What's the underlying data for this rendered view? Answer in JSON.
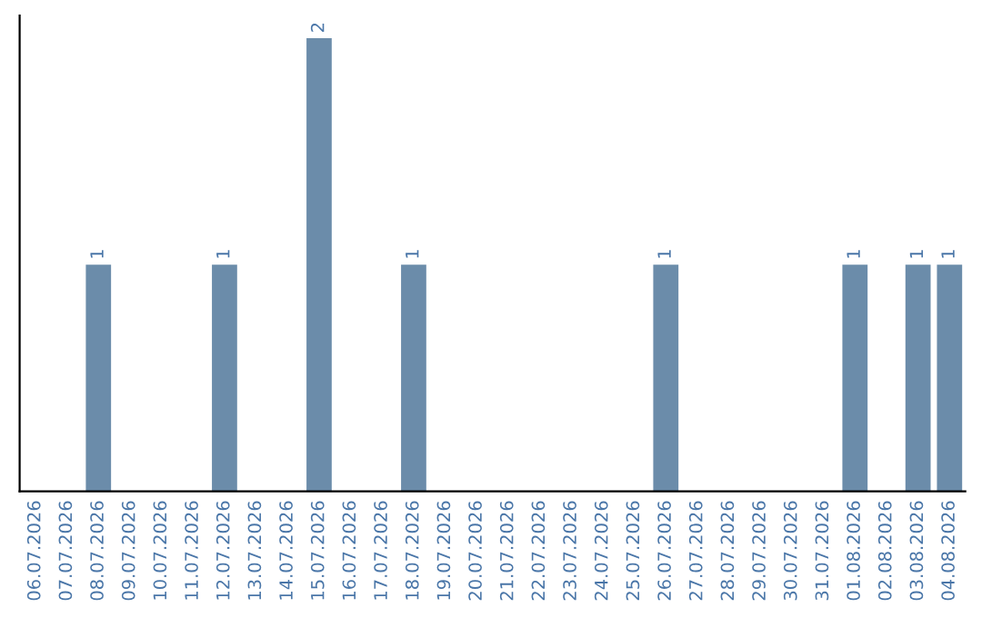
{
  "chart_data": {
    "type": "bar",
    "categories": [
      "06.07.2026",
      "07.07.2026",
      "08.07.2026",
      "09.07.2026",
      "10.07.2026",
      "11.07.2026",
      "12.07.2026",
      "13.07.2026",
      "14.07.2026",
      "15.07.2026",
      "16.07.2026",
      "17.07.2026",
      "18.07.2026",
      "19.07.2026",
      "20.07.2026",
      "21.07.2026",
      "22.07.2026",
      "23.07.2026",
      "24.07.2026",
      "25.07.2026",
      "26.07.2026",
      "27.07.2026",
      "28.07.2026",
      "29.07.2026",
      "30.07.2026",
      "31.07.2026",
      "01.08.2026",
      "02.08.2026",
      "03.08.2026",
      "04.08.2026"
    ],
    "values": [
      0,
      0,
      1,
      0,
      0,
      0,
      1,
      0,
      0,
      2,
      0,
      0,
      1,
      0,
      0,
      0,
      0,
      0,
      0,
      0,
      1,
      0,
      0,
      0,
      0,
      0,
      1,
      0,
      1,
      1
    ],
    "value_labels": [
      null,
      null,
      "1",
      null,
      null,
      null,
      "1",
      null,
      null,
      "2",
      null,
      null,
      "1",
      null,
      null,
      null,
      null,
      null,
      null,
      null,
      "1",
      null,
      null,
      null,
      null,
      null,
      "1",
      null,
      "1",
      "1"
    ],
    "color": "#6b8caa",
    "tick_labels": "x",
    "grid": false,
    "legend": false
  }
}
